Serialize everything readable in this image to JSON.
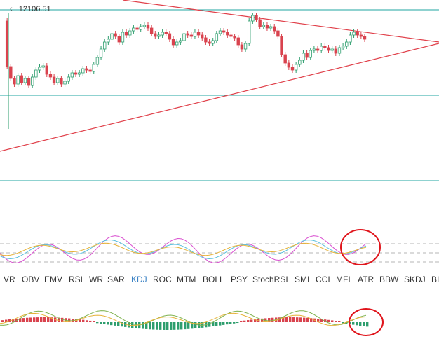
{
  "chart": {
    "price_label": "12106.51",
    "price_arrow": "‹"
  },
  "indicator_tabs": [
    {
      "label": "VR"
    },
    {
      "label": "OBV"
    },
    {
      "label": "EMV"
    },
    {
      "label": "RSI"
    },
    {
      "label": "WR"
    },
    {
      "label": "SAR"
    },
    {
      "label": "KDJ",
      "active": true
    },
    {
      "label": "ROC"
    },
    {
      "label": "MTM"
    },
    {
      "label": "BOLL"
    },
    {
      "label": "PSY"
    },
    {
      "label": "StochRSI"
    },
    {
      "label": "SMI"
    },
    {
      "label": "CCI"
    },
    {
      "label": "MFI"
    },
    {
      "label": "ATR"
    },
    {
      "label": "BBW"
    },
    {
      "label": "SKDJ"
    },
    {
      "label": "BI"
    }
  ],
  "colors": {
    "bull": "#2e9e6e",
    "bear": "#d9434e",
    "trendline": "#e0404a",
    "level_line": "#1fa6a0",
    "highlight_circle": "#e0151c",
    "k_line": "#d94fd0",
    "d_line": "#5bc0de",
    "j_line": "#e6b33a",
    "macd_dif": "#7fb24f",
    "macd_dea": "#e6b33a"
  }
}
